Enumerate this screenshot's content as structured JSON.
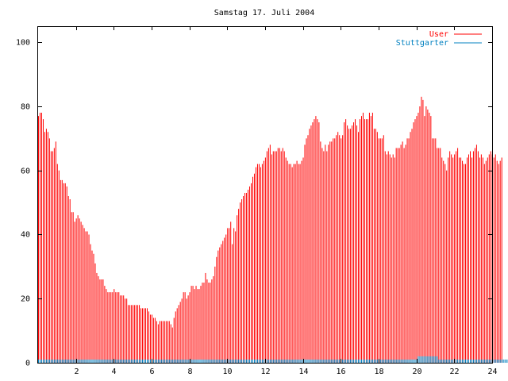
{
  "chart_data": {
    "type": "bar",
    "title": "Samstag 17. Juli 2004",
    "xlabel": "",
    "ylabel": "",
    "xlim": [
      0,
      24
    ],
    "ylim": [
      0,
      105
    ],
    "xticks": [
      "2",
      "4",
      "6",
      "8",
      "10",
      "12",
      "14",
      "16",
      "18",
      "20",
      "22",
      "24"
    ],
    "yticks": [
      "0",
      "20",
      "40",
      "60",
      "80",
      "100"
    ],
    "grid": false,
    "legend_position": "top-right",
    "x_step_hours": 0.0833,
    "series": [
      {
        "name": "User",
        "color": "#ff0000",
        "values": [
          77,
          78,
          78,
          76,
          72,
          73,
          72,
          70,
          66,
          66,
          67,
          69,
          62,
          60,
          57,
          57,
          56,
          56,
          55,
          52,
          51,
          47,
          47,
          44,
          45,
          46,
          45,
          44,
          43,
          42,
          41,
          41,
          40,
          37,
          35,
          34,
          31,
          28,
          27,
          26,
          26,
          26,
          24,
          23,
          22,
          22,
          22,
          22,
          23,
          22,
          22,
          22,
          21,
          21,
          21,
          20,
          20,
          18,
          18,
          18,
          18,
          18,
          18,
          18,
          18,
          17,
          17,
          17,
          17,
          17,
          16,
          15,
          15,
          14,
          14,
          13,
          12,
          13,
          13,
          13,
          13,
          13,
          13,
          13,
          12,
          11,
          14,
          16,
          17,
          18,
          19,
          20,
          22,
          22,
          20,
          21,
          22,
          24,
          24,
          23,
          24,
          23,
          23,
          24,
          25,
          25,
          28,
          26,
          25,
          25,
          26,
          27,
          30,
          33,
          35,
          36,
          37,
          38,
          39,
          40,
          42,
          42,
          44,
          37,
          42,
          41,
          46,
          48,
          50,
          51,
          52,
          53,
          53,
          54,
          55,
          56,
          58,
          59,
          61,
          62,
          62,
          61,
          62,
          63,
          64,
          66,
          67,
          68,
          65,
          66,
          66,
          66,
          67,
          67,
          66,
          67,
          66,
          64,
          63,
          62,
          62,
          61,
          62,
          62,
          63,
          62,
          62,
          63,
          64,
          68,
          70,
          71,
          73,
          74,
          75,
          76,
          77,
          76,
          75,
          69,
          67,
          66,
          68,
          66,
          68,
          69,
          69,
          70,
          70,
          71,
          72,
          71,
          70,
          71,
          75,
          76,
          74,
          73,
          73,
          74,
          75,
          76,
          74,
          72,
          76,
          77,
          78,
          76,
          76,
          76,
          78,
          77,
          78,
          73,
          73,
          72,
          70,
          70,
          70,
          71,
          66,
          65,
          66,
          65,
          64,
          65,
          64,
          67,
          67,
          67,
          68,
          69,
          67,
          68,
          70,
          70,
          72,
          73,
          75,
          76,
          77,
          78,
          80,
          83,
          82,
          77,
          80,
          79,
          78,
          77,
          70,
          70,
          70,
          67,
          67,
          67,
          64,
          63,
          62,
          60,
          64,
          66,
          65,
          64,
          65,
          66,
          67,
          64,
          64,
          63,
          62,
          62,
          64,
          65,
          66,
          64,
          66,
          67,
          68,
          66,
          64,
          65,
          64,
          62,
          63,
          64,
          65,
          66,
          65,
          64,
          65,
          63,
          62,
          63,
          64
        ]
      },
      {
        "name": "Stuttgarter",
        "color": "#0080c0",
        "values": [
          1,
          1,
          1,
          1,
          1,
          1,
          1,
          1,
          1,
          1,
          1,
          1,
          1,
          1,
          1,
          1,
          1,
          1,
          1,
          1,
          1,
          1,
          1,
          1,
          1,
          1,
          1,
          1,
          1,
          1,
          1,
          1,
          1,
          1,
          1,
          1,
          1,
          1,
          1,
          1,
          1,
          1,
          1,
          1,
          1,
          1,
          1,
          1,
          1,
          1,
          1,
          1,
          1,
          1,
          1,
          1,
          1,
          1,
          1,
          1,
          1,
          1,
          1,
          1,
          1,
          1,
          1,
          1,
          1,
          1,
          1,
          1,
          1,
          1,
          1,
          1,
          1,
          1,
          1,
          1,
          1,
          1,
          1,
          1,
          1,
          1,
          1,
          1,
          1,
          1,
          1,
          1,
          1,
          1,
          1,
          1,
          1,
          1,
          1,
          1,
          1,
          1,
          1,
          1,
          1,
          1,
          1,
          1,
          1,
          1,
          1,
          1,
          1,
          1,
          1,
          1,
          1,
          1,
          1,
          1,
          1,
          1,
          1,
          1,
          1,
          1,
          1,
          1,
          1,
          1,
          1,
          1,
          1,
          1,
          1,
          1,
          1,
          1,
          1,
          1,
          1,
          1,
          1,
          1,
          1,
          1,
          1,
          1,
          1,
          1,
          1,
          1,
          1,
          1,
          1,
          1,
          1,
          1,
          1,
          1,
          1,
          1,
          1,
          1,
          1,
          1,
          1,
          1,
          1,
          1,
          1,
          1,
          1,
          1,
          1,
          1,
          1,
          1,
          1,
          1,
          1,
          1,
          1,
          1,
          1,
          1,
          1,
          1,
          1,
          1,
          1,
          1,
          1,
          1,
          1,
          1,
          1,
          1,
          1,
          1,
          1,
          1,
          1,
          1,
          1,
          1,
          1,
          1,
          1,
          1,
          1,
          1,
          1,
          1,
          1,
          1,
          1,
          1,
          1,
          1,
          1,
          1,
          1,
          1,
          1,
          1,
          1,
          1,
          1,
          1,
          1,
          1,
          1,
          1,
          1,
          1,
          1,
          1,
          1,
          1,
          1,
          2,
          2,
          2,
          2,
          2,
          2,
          2,
          2,
          2,
          2,
          2,
          2,
          2,
          1,
          1,
          1,
          1,
          1,
          1,
          1,
          1,
          1,
          1,
          1,
          1,
          1,
          1,
          1,
          1,
          1,
          1,
          1,
          1,
          1,
          1,
          1,
          1,
          1,
          1,
          1,
          1,
          1,
          1,
          1,
          1,
          1,
          1,
          1,
          1,
          1,
          1,
          1,
          1,
          1,
          1,
          1,
          1,
          1,
          1,
          1,
          1,
          1,
          1,
          1,
          1,
          1,
          1,
          1,
          1,
          1,
          1,
          1,
          1,
          1,
          1,
          1,
          1
        ]
      }
    ]
  }
}
